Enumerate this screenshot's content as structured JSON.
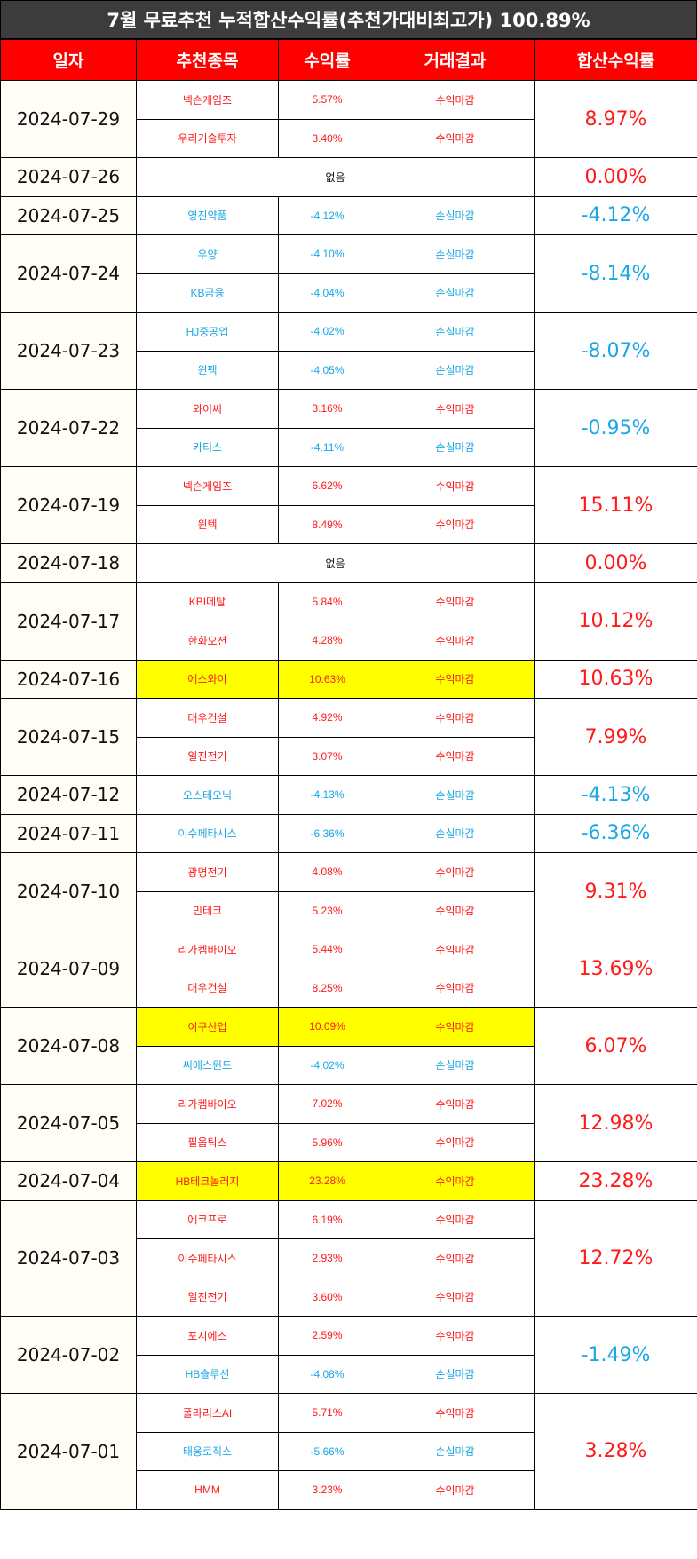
{
  "title": "7월 무료추천 누적합산수익률(추천가대비최고가) 100.89%",
  "headers": [
    "일자",
    "추천종목",
    "수익률",
    "거래결과",
    "합산수익률"
  ],
  "none_label": "없음",
  "colors": {
    "positive": "#ff1a1a",
    "negative": "#1aa7e6",
    "highlight": "#ffff00",
    "header": "#ff0000",
    "title_bg": "#3c3c3c"
  },
  "days": [
    {
      "date": "2024-07-29",
      "total": "8.97%",
      "total_sign": "pos",
      "stocks": [
        {
          "name": "넥슨게임즈",
          "ret": "5.57%",
          "result": "수익마감",
          "sign": "pos",
          "highlight": false
        },
        {
          "name": "우리기술투자",
          "ret": "3.40%",
          "result": "수익마감",
          "sign": "pos",
          "highlight": false
        }
      ]
    },
    {
      "date": "2024-07-26",
      "total": "0.00%",
      "total_sign": "pos",
      "stocks": []
    },
    {
      "date": "2024-07-25",
      "total": "-4.12%",
      "total_sign": "neg",
      "stocks": [
        {
          "name": "영진약품",
          "ret": "-4.12%",
          "result": "손실마감",
          "sign": "neg",
          "highlight": false
        }
      ]
    },
    {
      "date": "2024-07-24",
      "total": "-8.14%",
      "total_sign": "neg",
      "stocks": [
        {
          "name": "우양",
          "ret": "-4.10%",
          "result": "손실마감",
          "sign": "neg",
          "highlight": false
        },
        {
          "name": "KB금융",
          "ret": "-4.04%",
          "result": "손실마감",
          "sign": "neg",
          "highlight": false
        }
      ]
    },
    {
      "date": "2024-07-23",
      "total": "-8.07%",
      "total_sign": "neg",
      "stocks": [
        {
          "name": "HJ중공업",
          "ret": "-4.02%",
          "result": "손실마감",
          "sign": "neg",
          "highlight": false
        },
        {
          "name": "윈팩",
          "ret": "-4.05%",
          "result": "손실마감",
          "sign": "neg",
          "highlight": false
        }
      ]
    },
    {
      "date": "2024-07-22",
      "total": "-0.95%",
      "total_sign": "neg",
      "stocks": [
        {
          "name": "와이씨",
          "ret": "3.16%",
          "result": "수익마감",
          "sign": "pos",
          "highlight": false
        },
        {
          "name": "카티스",
          "ret": "-4.11%",
          "result": "손실마감",
          "sign": "neg",
          "highlight": false
        }
      ]
    },
    {
      "date": "2024-07-19",
      "total": "15.11%",
      "total_sign": "pos",
      "stocks": [
        {
          "name": "넥슨게임즈",
          "ret": "6.62%",
          "result": "수익마감",
          "sign": "pos",
          "highlight": false
        },
        {
          "name": "윈텍",
          "ret": "8.49%",
          "result": "수익마감",
          "sign": "pos",
          "highlight": false
        }
      ]
    },
    {
      "date": "2024-07-18",
      "total": "0.00%",
      "total_sign": "pos",
      "stocks": []
    },
    {
      "date": "2024-07-17",
      "total": "10.12%",
      "total_sign": "pos",
      "stocks": [
        {
          "name": "KBI메탈",
          "ret": "5.84%",
          "result": "수익마감",
          "sign": "pos",
          "highlight": false
        },
        {
          "name": "한화오션",
          "ret": "4.28%",
          "result": "수익마감",
          "sign": "pos",
          "highlight": false
        }
      ]
    },
    {
      "date": "2024-07-16",
      "total": "10.63%",
      "total_sign": "pos",
      "stocks": [
        {
          "name": "에스와이",
          "ret": "10.63%",
          "result": "수익마감",
          "sign": "pos",
          "highlight": true
        }
      ]
    },
    {
      "date": "2024-07-15",
      "total": "7.99%",
      "total_sign": "pos",
      "stocks": [
        {
          "name": "대우건설",
          "ret": "4.92%",
          "result": "수익마감",
          "sign": "pos",
          "highlight": false
        },
        {
          "name": "일진전기",
          "ret": "3.07%",
          "result": "수익마감",
          "sign": "pos",
          "highlight": false
        }
      ]
    },
    {
      "date": "2024-07-12",
      "total": "-4.13%",
      "total_sign": "neg",
      "stocks": [
        {
          "name": "오스테오닉",
          "ret": "-4.13%",
          "result": "손실마감",
          "sign": "neg",
          "highlight": false
        }
      ]
    },
    {
      "date": "2024-07-11",
      "total": "-6.36%",
      "total_sign": "neg",
      "stocks": [
        {
          "name": "이수페타시스",
          "ret": "-6.36%",
          "result": "손실마감",
          "sign": "neg",
          "highlight": false
        }
      ]
    },
    {
      "date": "2024-07-10",
      "total": "9.31%",
      "total_sign": "pos",
      "stocks": [
        {
          "name": "광명전기",
          "ret": "4.08%",
          "result": "수익마감",
          "sign": "pos",
          "highlight": false
        },
        {
          "name": "민테크",
          "ret": "5.23%",
          "result": "수익마감",
          "sign": "pos",
          "highlight": false
        }
      ]
    },
    {
      "date": "2024-07-09",
      "total": "13.69%",
      "total_sign": "pos",
      "stocks": [
        {
          "name": "리가켐바이오",
          "ret": "5.44%",
          "result": "수익마감",
          "sign": "pos",
          "highlight": false
        },
        {
          "name": "대우건설",
          "ret": "8.25%",
          "result": "수익마감",
          "sign": "pos",
          "highlight": false
        }
      ]
    },
    {
      "date": "2024-07-08",
      "total": "6.07%",
      "total_sign": "pos",
      "stocks": [
        {
          "name": "이구산업",
          "ret": "10.09%",
          "result": "수익마감",
          "sign": "pos",
          "highlight": true
        },
        {
          "name": "씨에스윈드",
          "ret": "-4.02%",
          "result": "손실마감",
          "sign": "neg",
          "highlight": false
        }
      ]
    },
    {
      "date": "2024-07-05",
      "total": "12.98%",
      "total_sign": "pos",
      "stocks": [
        {
          "name": "리가켐바이오",
          "ret": "7.02%",
          "result": "수익마감",
          "sign": "pos",
          "highlight": false
        },
        {
          "name": "필옵틱스",
          "ret": "5.96%",
          "result": "수익마감",
          "sign": "pos",
          "highlight": false
        }
      ]
    },
    {
      "date": "2024-07-04",
      "total": "23.28%",
      "total_sign": "pos",
      "stocks": [
        {
          "name": "HB테크놀러지",
          "ret": "23.28%",
          "result": "수익마감",
          "sign": "pos",
          "highlight": true
        }
      ]
    },
    {
      "date": "2024-07-03",
      "total": "12.72%",
      "total_sign": "pos",
      "stocks": [
        {
          "name": "에코프로",
          "ret": "6.19%",
          "result": "수익마감",
          "sign": "pos",
          "highlight": false
        },
        {
          "name": "이수페타시스",
          "ret": "2.93%",
          "result": "수익마감",
          "sign": "pos",
          "highlight": false
        },
        {
          "name": "일진전기",
          "ret": "3.60%",
          "result": "수익마감",
          "sign": "pos",
          "highlight": false
        }
      ]
    },
    {
      "date": "2024-07-02",
      "total": "-1.49%",
      "total_sign": "neg",
      "stocks": [
        {
          "name": "포시에스",
          "ret": "2.59%",
          "result": "수익마감",
          "sign": "pos",
          "highlight": false
        },
        {
          "name": "HB솔루션",
          "ret": "-4.08%",
          "result": "손실마감",
          "sign": "neg",
          "highlight": false
        }
      ]
    },
    {
      "date": "2024-07-01",
      "total": "3.28%",
      "total_sign": "pos",
      "stocks": [
        {
          "name": "폴라리스AI",
          "ret": "5.71%",
          "result": "수익마감",
          "sign": "pos",
          "highlight": false
        },
        {
          "name": "태웅로직스",
          "ret": "-5.66%",
          "result": "손실마감",
          "sign": "neg",
          "highlight": false
        },
        {
          "name": "HMM",
          "ret": "3.23%",
          "result": "수익마감",
          "sign": "pos",
          "highlight": false
        }
      ]
    }
  ]
}
